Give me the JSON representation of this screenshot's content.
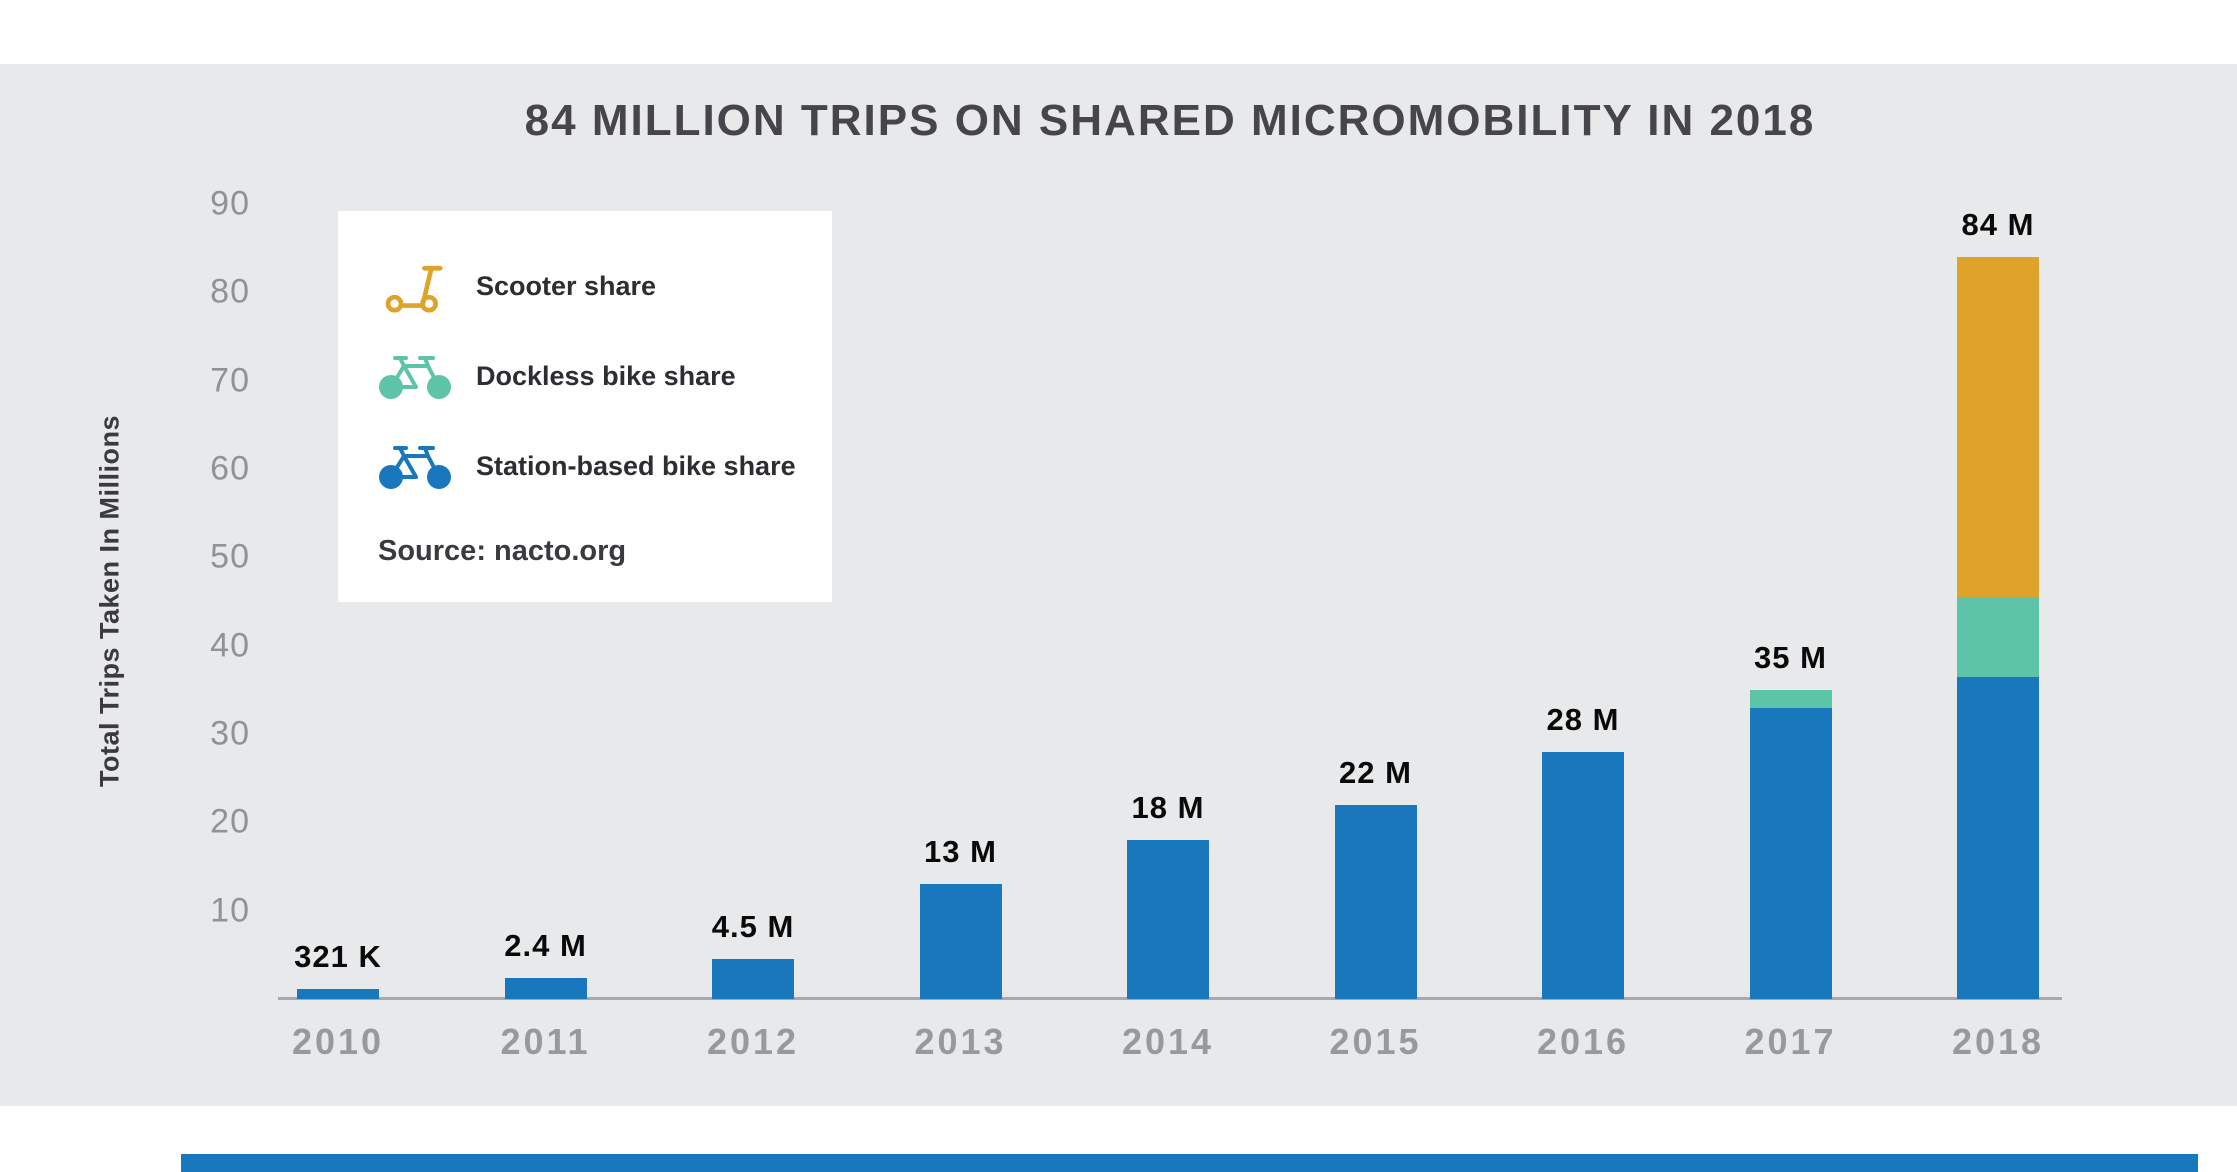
{
  "page": {
    "background_color": "#e8e9ea",
    "band_color": "#ffffff",
    "footer_bar_color": "#1977bd"
  },
  "chart_data": {
    "type": "bar",
    "stacked": true,
    "title": "84 MILLION TRIPS ON SHARED MICROMOBILITY IN 2018",
    "ylabel": "Total Trips Taken In Millions",
    "xlabel": "",
    "source": "Source: nacto.org",
    "ylim": [
      0,
      90
    ],
    "yticks": [
      10,
      20,
      30,
      40,
      50,
      60,
      70,
      80,
      90
    ],
    "grid": false,
    "legend_position": "upper-left",
    "categories": [
      "2010",
      "2011",
      "2012",
      "2013",
      "2014",
      "2015",
      "2016",
      "2017",
      "2018"
    ],
    "series": [
      {
        "name": "Station-based bike share",
        "color": "#1977bd",
        "values": [
          0.321,
          2.4,
          4.5,
          13,
          18,
          22,
          28,
          33,
          36.5
        ]
      },
      {
        "name": "Dockless bike share",
        "color": "#5ec4a8",
        "values": [
          0,
          0,
          0,
          0,
          0,
          0,
          0,
          2,
          9
        ]
      },
      {
        "name": "Scooter share",
        "color": "#dfa32a",
        "values": [
          0,
          0,
          0,
          0,
          0,
          0,
          0,
          0,
          38.5
        ]
      }
    ],
    "bar_labels": [
      "321 K",
      "2.4 M",
      "4.5 M",
      "13 M",
      "18 M",
      "22 M",
      "28 M",
      "35 M",
      "84 M"
    ],
    "legend_items": [
      {
        "label": "Scooter share",
        "icon": "scooter-icon",
        "color": "#dfa32a"
      },
      {
        "label": "Dockless bike share",
        "icon": "dockless-bike-icon",
        "color": "#5ec4a8"
      },
      {
        "label": "Station-based bike share",
        "icon": "station-bike-icon",
        "color": "#1977bd"
      }
    ]
  }
}
